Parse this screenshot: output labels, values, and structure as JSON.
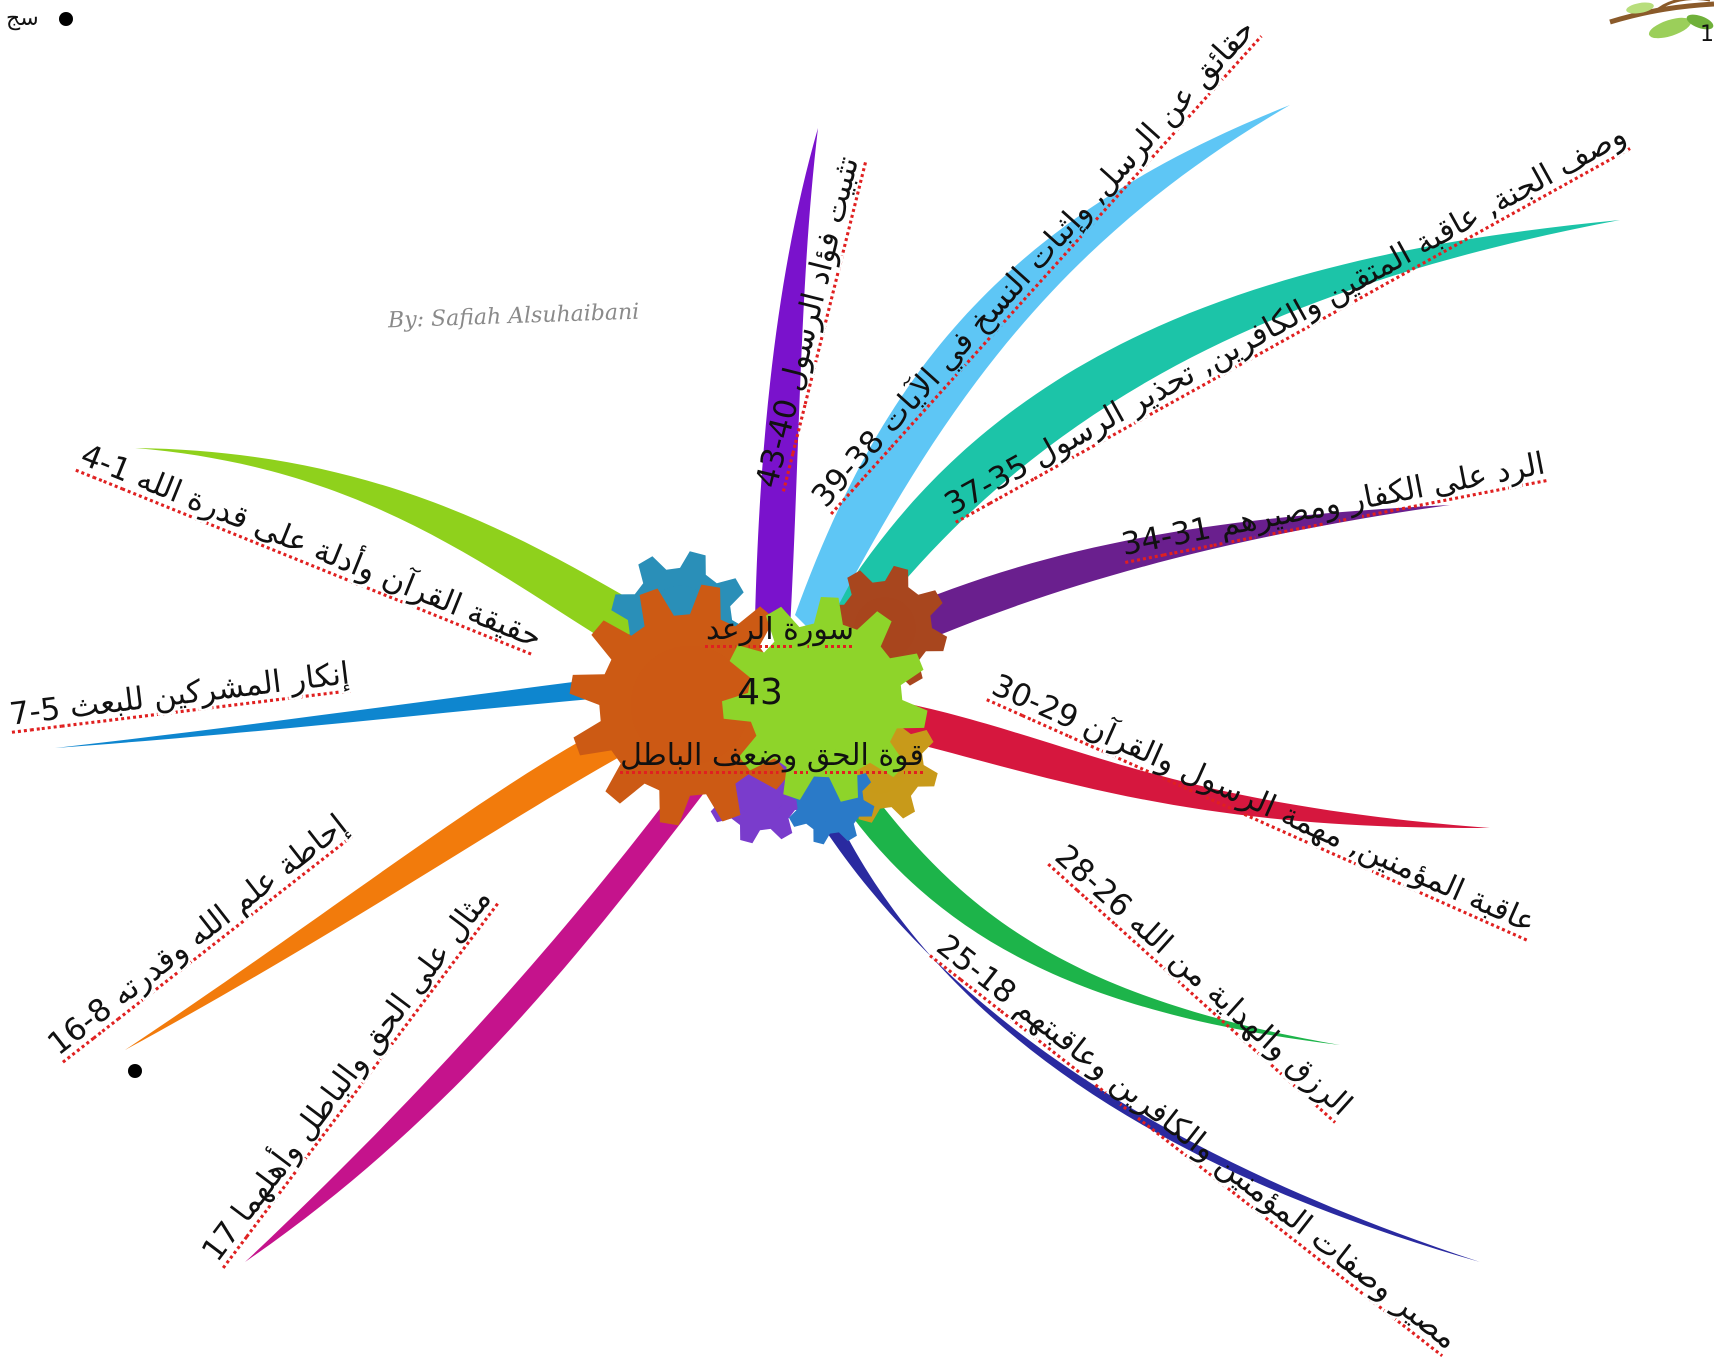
{
  "header": {
    "corner_left_text": "سج",
    "corner_right_text": "1"
  },
  "author": "By: Safiah Alsuhaibani",
  "center": {
    "title": "سورة الرعد",
    "count": "43",
    "subtitle": "قوة الحق وضعف الباطل"
  },
  "branches": [
    {
      "id": "b1",
      "label": "حقيقة القرآن وأدلة على قدرة الله 1-4",
      "color": "#8fd11c"
    },
    {
      "id": "b2",
      "label": "إنكار المشركين للبعث 5-7",
      "color": "#0e86cf"
    },
    {
      "id": "b3",
      "label": "إحاطة علم الله وقدرته 8-16",
      "color": "#f27b0c"
    },
    {
      "id": "b4",
      "label": "مثال على الحق والباطل وأهلهما 17",
      "color": "#c5138c"
    },
    {
      "id": "b5",
      "label": "مصير وصفات المؤمنين والكافرين وعاقبتهم 18-25",
      "color": "#2a2aa0"
    },
    {
      "id": "b6",
      "label": "الرزق والهداية من الله 26-28",
      "color": "#1db44a"
    },
    {
      "id": "b7",
      "label": "عاقبة المؤمنين, مهمة الرسول والقرآن 29-30",
      "color": "#d6173e"
    },
    {
      "id": "b8",
      "label": "الرد على الكفار ومصيرهم 31-34",
      "color": "#6a1f8e"
    },
    {
      "id": "b9",
      "label": "وصف الجنة, عاقبة المتقين والكافرين, تحذير الرسول 35-37",
      "color": "#1cc4a8"
    },
    {
      "id": "b10",
      "label": "حقائق عن الرسل, وإثبات النسخ في الآيات 38-39",
      "color": "#5ec6f5"
    },
    {
      "id": "b11",
      "label": "تثبيت فؤاد الرسول 40-43",
      "color": "#7a12cc"
    }
  ],
  "gears": [
    {
      "name": "orange-gear-icon",
      "color": "#cc5a14"
    },
    {
      "name": "green-gear-icon",
      "color": "#8ed42a"
    },
    {
      "name": "teal-gear-icon",
      "color": "#2a8fb8"
    },
    {
      "name": "brown-gear-icon",
      "color": "#a8461e"
    },
    {
      "name": "gold-gear-icon",
      "color": "#c89a1a"
    },
    {
      "name": "purple-gear-icon",
      "color": "#7a3ccc"
    },
    {
      "name": "blue-gear-icon",
      "color": "#2a7ac8"
    }
  ],
  "decor_icons": [
    "tree-branch-icon"
  ]
}
